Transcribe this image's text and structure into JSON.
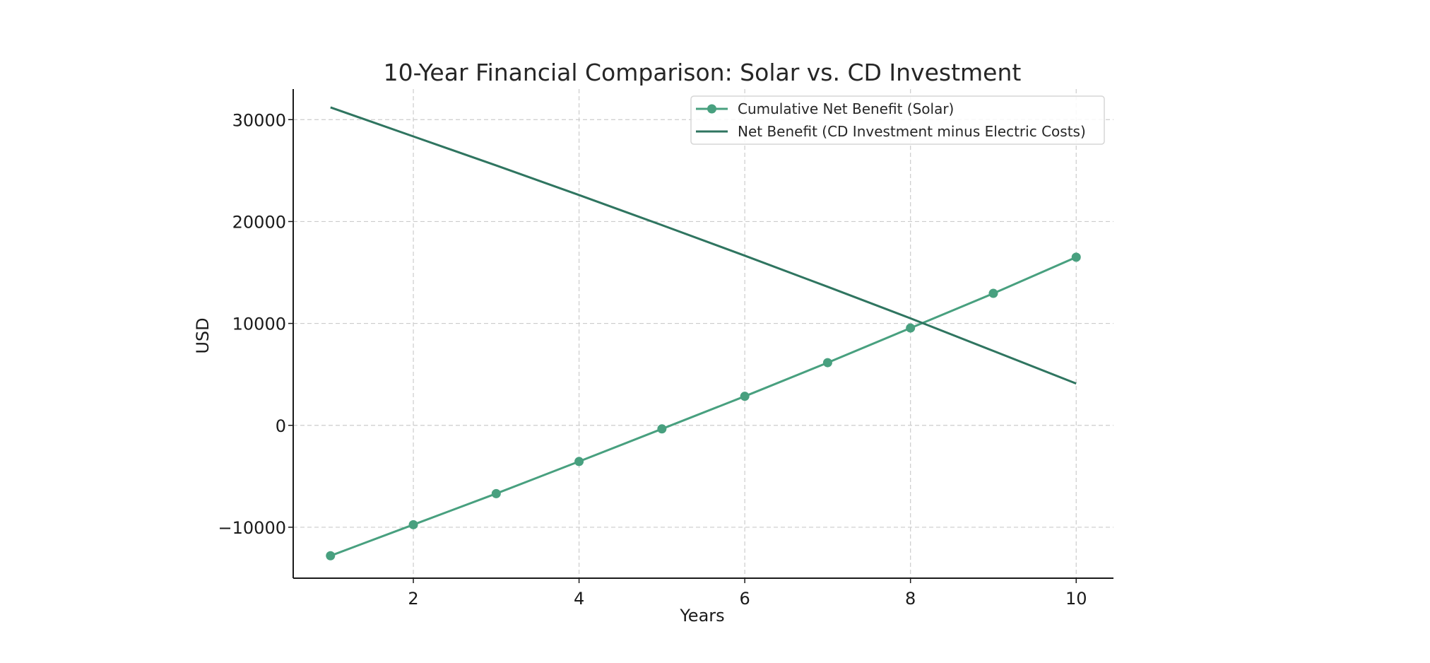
{
  "chart_data": {
    "type": "line",
    "title": "10-Year Financial Comparison: Solar vs. CD Investment",
    "xlabel": "Years",
    "ylabel": "USD",
    "xlim": [
      0.55,
      10.45
    ],
    "ylim": [
      -15000,
      33000
    ],
    "xticks": [
      2,
      4,
      6,
      8,
      10
    ],
    "yticks": [
      -10000,
      0,
      10000,
      20000,
      30000
    ],
    "ytick_labels": [
      "−10000",
      "0",
      "10000",
      "20000",
      "30000"
    ],
    "grid": true,
    "legend_position": "top-right",
    "x": [
      1,
      2,
      3,
      4,
      5,
      6,
      7,
      8,
      9,
      10
    ],
    "series": [
      {
        "name": "Cumulative Net Benefit (Solar)",
        "values": [
          -12800,
          -9750,
          -6700,
          -3550,
          -350,
          2850,
          6150,
          9550,
          12950,
          16500
        ],
        "color": "#48a07f",
        "marker": "circle"
      },
      {
        "name": "Net Benefit (CD Investment minus Electric Costs)",
        "values": [
          31200,
          28350,
          25500,
          22600,
          19650,
          16650,
          13600,
          10500,
          7300,
          4100
        ],
        "color": "#2f7560",
        "marker": "none"
      }
    ]
  }
}
